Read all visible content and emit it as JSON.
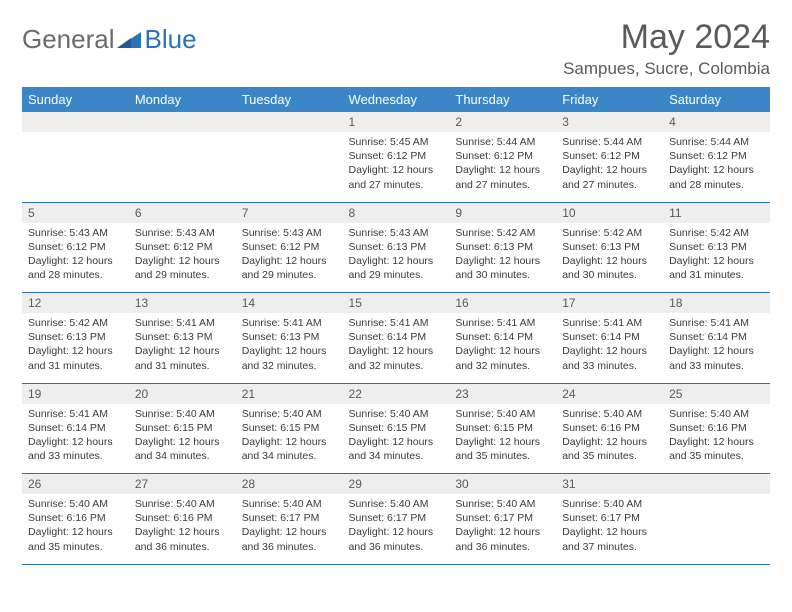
{
  "logo": {
    "general": "General",
    "blue": "Blue"
  },
  "title": "May 2024",
  "location": "Sampues, Sucre, Colombia",
  "colors": {
    "header_bg": "#3b86c7",
    "header_text": "#ffffff",
    "numrow_bg": "#eeeeee",
    "border": "#2a72b5",
    "title_color": "#5a5a5a",
    "logo_gray": "#6b6b6b",
    "logo_blue": "#2a72b5"
  },
  "day_headers": [
    "Sunday",
    "Monday",
    "Tuesday",
    "Wednesday",
    "Thursday",
    "Friday",
    "Saturday"
  ],
  "weeks": [
    {
      "nums": [
        "",
        "",
        "",
        "1",
        "2",
        "3",
        "4"
      ],
      "cells": [
        "",
        "",
        "",
        "Sunrise: 5:45 AM\nSunset: 6:12 PM\nDaylight: 12 hours and 27 minutes.",
        "Sunrise: 5:44 AM\nSunset: 6:12 PM\nDaylight: 12 hours and 27 minutes.",
        "Sunrise: 5:44 AM\nSunset: 6:12 PM\nDaylight: 12 hours and 27 minutes.",
        "Sunrise: 5:44 AM\nSunset: 6:12 PM\nDaylight: 12 hours and 28 minutes."
      ]
    },
    {
      "nums": [
        "5",
        "6",
        "7",
        "8",
        "9",
        "10",
        "11"
      ],
      "cells": [
        "Sunrise: 5:43 AM\nSunset: 6:12 PM\nDaylight: 12 hours and 28 minutes.",
        "Sunrise: 5:43 AM\nSunset: 6:12 PM\nDaylight: 12 hours and 29 minutes.",
        "Sunrise: 5:43 AM\nSunset: 6:12 PM\nDaylight: 12 hours and 29 minutes.",
        "Sunrise: 5:43 AM\nSunset: 6:13 PM\nDaylight: 12 hours and 29 minutes.",
        "Sunrise: 5:42 AM\nSunset: 6:13 PM\nDaylight: 12 hours and 30 minutes.",
        "Sunrise: 5:42 AM\nSunset: 6:13 PM\nDaylight: 12 hours and 30 minutes.",
        "Sunrise: 5:42 AM\nSunset: 6:13 PM\nDaylight: 12 hours and 31 minutes."
      ]
    },
    {
      "nums": [
        "12",
        "13",
        "14",
        "15",
        "16",
        "17",
        "18"
      ],
      "cells": [
        "Sunrise: 5:42 AM\nSunset: 6:13 PM\nDaylight: 12 hours and 31 minutes.",
        "Sunrise: 5:41 AM\nSunset: 6:13 PM\nDaylight: 12 hours and 31 minutes.",
        "Sunrise: 5:41 AM\nSunset: 6:13 PM\nDaylight: 12 hours and 32 minutes.",
        "Sunrise: 5:41 AM\nSunset: 6:14 PM\nDaylight: 12 hours and 32 minutes.",
        "Sunrise: 5:41 AM\nSunset: 6:14 PM\nDaylight: 12 hours and 32 minutes.",
        "Sunrise: 5:41 AM\nSunset: 6:14 PM\nDaylight: 12 hours and 33 minutes.",
        "Sunrise: 5:41 AM\nSunset: 6:14 PM\nDaylight: 12 hours and 33 minutes."
      ]
    },
    {
      "nums": [
        "19",
        "20",
        "21",
        "22",
        "23",
        "24",
        "25"
      ],
      "cells": [
        "Sunrise: 5:41 AM\nSunset: 6:14 PM\nDaylight: 12 hours and 33 minutes.",
        "Sunrise: 5:40 AM\nSunset: 6:15 PM\nDaylight: 12 hours and 34 minutes.",
        "Sunrise: 5:40 AM\nSunset: 6:15 PM\nDaylight: 12 hours and 34 minutes.",
        "Sunrise: 5:40 AM\nSunset: 6:15 PM\nDaylight: 12 hours and 34 minutes.",
        "Sunrise: 5:40 AM\nSunset: 6:15 PM\nDaylight: 12 hours and 35 minutes.",
        "Sunrise: 5:40 AM\nSunset: 6:16 PM\nDaylight: 12 hours and 35 minutes.",
        "Sunrise: 5:40 AM\nSunset: 6:16 PM\nDaylight: 12 hours and 35 minutes."
      ]
    },
    {
      "nums": [
        "26",
        "27",
        "28",
        "29",
        "30",
        "31",
        ""
      ],
      "cells": [
        "Sunrise: 5:40 AM\nSunset: 6:16 PM\nDaylight: 12 hours and 35 minutes.",
        "Sunrise: 5:40 AM\nSunset: 6:16 PM\nDaylight: 12 hours and 36 minutes.",
        "Sunrise: 5:40 AM\nSunset: 6:17 PM\nDaylight: 12 hours and 36 minutes.",
        "Sunrise: 5:40 AM\nSunset: 6:17 PM\nDaylight: 12 hours and 36 minutes.",
        "Sunrise: 5:40 AM\nSunset: 6:17 PM\nDaylight: 12 hours and 36 minutes.",
        "Sunrise: 5:40 AM\nSunset: 6:17 PM\nDaylight: 12 hours and 37 minutes.",
        ""
      ]
    }
  ]
}
